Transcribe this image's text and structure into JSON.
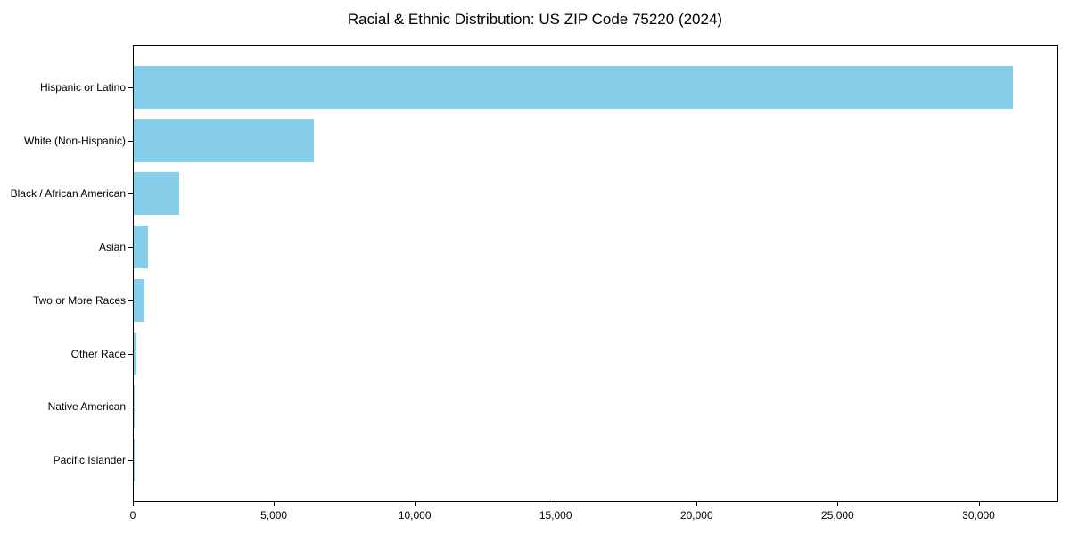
{
  "chart_data": {
    "type": "bar",
    "orientation": "horizontal",
    "title": "Racial & Ethnic Distribution: US ZIP Code 75220 (2024)",
    "categories": [
      "Hispanic or Latino",
      "White (Non-Hispanic)",
      "Black / African American",
      "Asian",
      "Two or More Races",
      "Other Race",
      "Native American",
      "Pacific Islander"
    ],
    "values": [
      31200,
      6400,
      1600,
      500,
      380,
      90,
      25,
      5
    ],
    "bar_color": "#87CEEB",
    "xlabel": "",
    "ylabel": "",
    "xlim": [
      0,
      32800
    ],
    "x_ticks": [
      0,
      5000,
      10000,
      15000,
      20000,
      25000,
      30000
    ],
    "x_tick_labels": [
      "0",
      "5,000",
      "10,000",
      "15,000",
      "20,000",
      "25,000",
      "30,000"
    ],
    "grid": false,
    "legend": false
  }
}
